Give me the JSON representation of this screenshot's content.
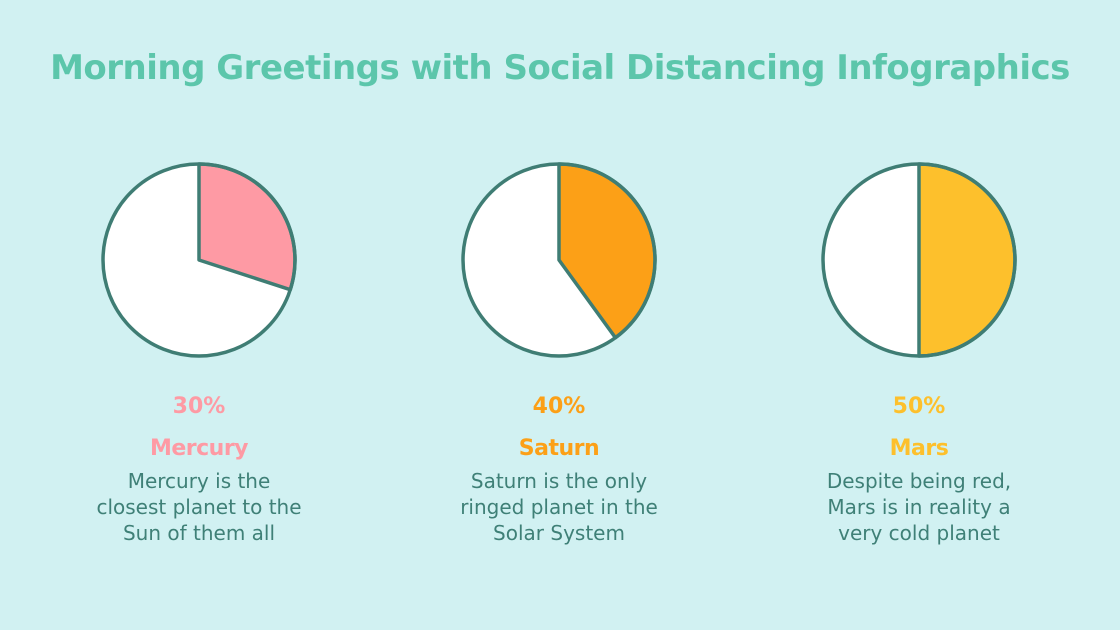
{
  "title": "Morning Greetings with Social Distancing Infographics",
  "colors": {
    "background": "#d1f1f2",
    "title": "#5cc6ab",
    "outline": "#3f7d74",
    "body_text": "#3f8077",
    "mercury": "#fe9aa4",
    "saturn": "#fca017",
    "mars": "#fdc02c"
  },
  "items": [
    {
      "percent": "30%",
      "name": "Mercury",
      "description": "Mercury is the closest planet to the Sun of them all",
      "description_lines": [
        "Mercury is the",
        "closest planet to the",
        "Sun of them all"
      ],
      "color": "#fe9aa4"
    },
    {
      "percent": "40%",
      "name": "Saturn",
      "description": "Saturn is the only ringed planet in the Solar System",
      "description_lines": [
        "Saturn is the only",
        "ringed planet in the",
        "Solar System"
      ],
      "color": "#fca017"
    },
    {
      "percent": "50%",
      "name": "Mars",
      "description": "Despite being red, Mars is in reality a very cold planet",
      "description_lines": [
        "Despite being red,",
        "Mars is in reality a",
        "very cold planet"
      ],
      "color": "#fdc02c"
    }
  ],
  "chart_data": [
    {
      "type": "pie",
      "title": "Mercury",
      "categories": [
        "Mercury",
        "Remainder"
      ],
      "values": [
        30,
        70
      ],
      "colors": [
        "#fe9aa4",
        "#ffffff"
      ]
    },
    {
      "type": "pie",
      "title": "Saturn",
      "categories": [
        "Saturn",
        "Remainder"
      ],
      "values": [
        40,
        60
      ],
      "colors": [
        "#fca017",
        "#ffffff"
      ]
    },
    {
      "type": "pie",
      "title": "Mars",
      "categories": [
        "Mars",
        "Remainder"
      ],
      "values": [
        50,
        50
      ],
      "colors": [
        "#fdc02c",
        "#ffffff"
      ]
    }
  ]
}
